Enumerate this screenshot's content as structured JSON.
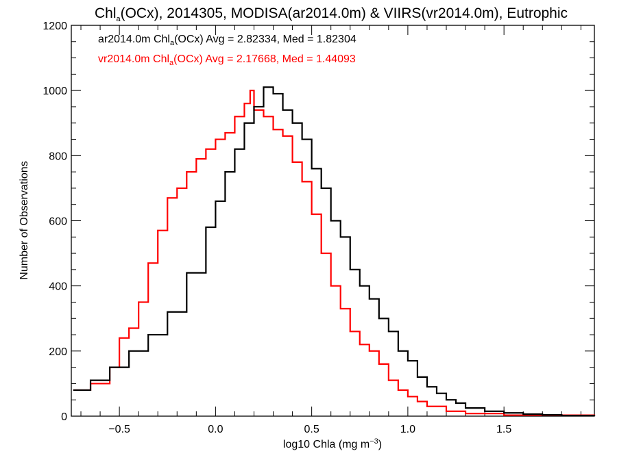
{
  "chart_data": {
    "type": "line",
    "title": {
      "main": "Chl",
      "sub": "a",
      "rest": "(OCx), 2014305, MODISA(ar2014.0m) & VIIRS(vr2014.0m), Eutrophic"
    },
    "xlabel": {
      "main": "log10 Chla (mg m",
      "sup": "−3",
      "end": ")"
    },
    "ylabel": "Number of Observations",
    "xlim": [
      -0.75,
      1.97
    ],
    "ylim": [
      0,
      1200
    ],
    "x_ticks": [
      -0.5,
      0.0,
      0.5,
      1.0,
      1.5
    ],
    "x_tick_labels": [
      "−0.5",
      "0.0",
      "0.5",
      "1.0",
      "1.5"
    ],
    "y_ticks": [
      0,
      200,
      400,
      600,
      800,
      1000,
      1200
    ],
    "y_tick_labels": [
      "0",
      "200",
      "400",
      "600",
      "800",
      "1000",
      "1200"
    ],
    "legend_position": "top-left",
    "series": [
      {
        "legend": {
          "pre": "ar2014.0m Chl",
          "sub": "a",
          "post": "(OCx) Avg = 2.82334, Med = 1.82304"
        },
        "color": "#000000",
        "x": [
          -0.74,
          -0.65,
          -0.55,
          -0.45,
          -0.35,
          -0.25,
          -0.15,
          -0.05,
          0.0,
          0.05,
          0.1,
          0.15,
          0.2,
          0.25,
          0.3,
          0.35,
          0.4,
          0.45,
          0.5,
          0.55,
          0.6,
          0.65,
          0.7,
          0.75,
          0.8,
          0.85,
          0.9,
          0.95,
          1.0,
          1.05,
          1.1,
          1.15,
          1.2,
          1.25,
          1.3,
          1.4,
          1.5,
          1.6,
          1.7,
          1.8,
          1.97
        ],
        "y": [
          80,
          110,
          150,
          200,
          250,
          320,
          440,
          580,
          660,
          750,
          820,
          900,
          950,
          1010,
          990,
          940,
          900,
          850,
          760,
          700,
          600,
          550,
          450,
          400,
          360,
          300,
          260,
          200,
          170,
          120,
          90,
          70,
          50,
          40,
          25,
          15,
          10,
          6,
          4,
          2,
          0
        ]
      },
      {
        "legend": {
          "pre": "vr2014.0m Chl",
          "sub": "a",
          "post": "(OCx) Avg = 2.17668, Med = 1.44093"
        },
        "color": "#ff0000",
        "x": [
          -0.74,
          -0.65,
          -0.55,
          -0.5,
          -0.45,
          -0.4,
          -0.35,
          -0.3,
          -0.25,
          -0.2,
          -0.15,
          -0.1,
          -0.05,
          0.0,
          0.05,
          0.1,
          0.15,
          0.18,
          0.2,
          0.25,
          0.3,
          0.35,
          0.4,
          0.45,
          0.5,
          0.55,
          0.6,
          0.65,
          0.7,
          0.75,
          0.8,
          0.85,
          0.9,
          0.95,
          1.0,
          1.05,
          1.1,
          1.2,
          1.3,
          1.5,
          1.97
        ],
        "y": [
          80,
          100,
          150,
          240,
          270,
          350,
          470,
          570,
          670,
          700,
          750,
          790,
          820,
          850,
          870,
          920,
          960,
          1000,
          940,
          920,
          880,
          860,
          780,
          720,
          620,
          500,
          400,
          330,
          260,
          220,
          200,
          160,
          110,
          80,
          60,
          45,
          30,
          15,
          8,
          3,
          0
        ]
      }
    ]
  }
}
